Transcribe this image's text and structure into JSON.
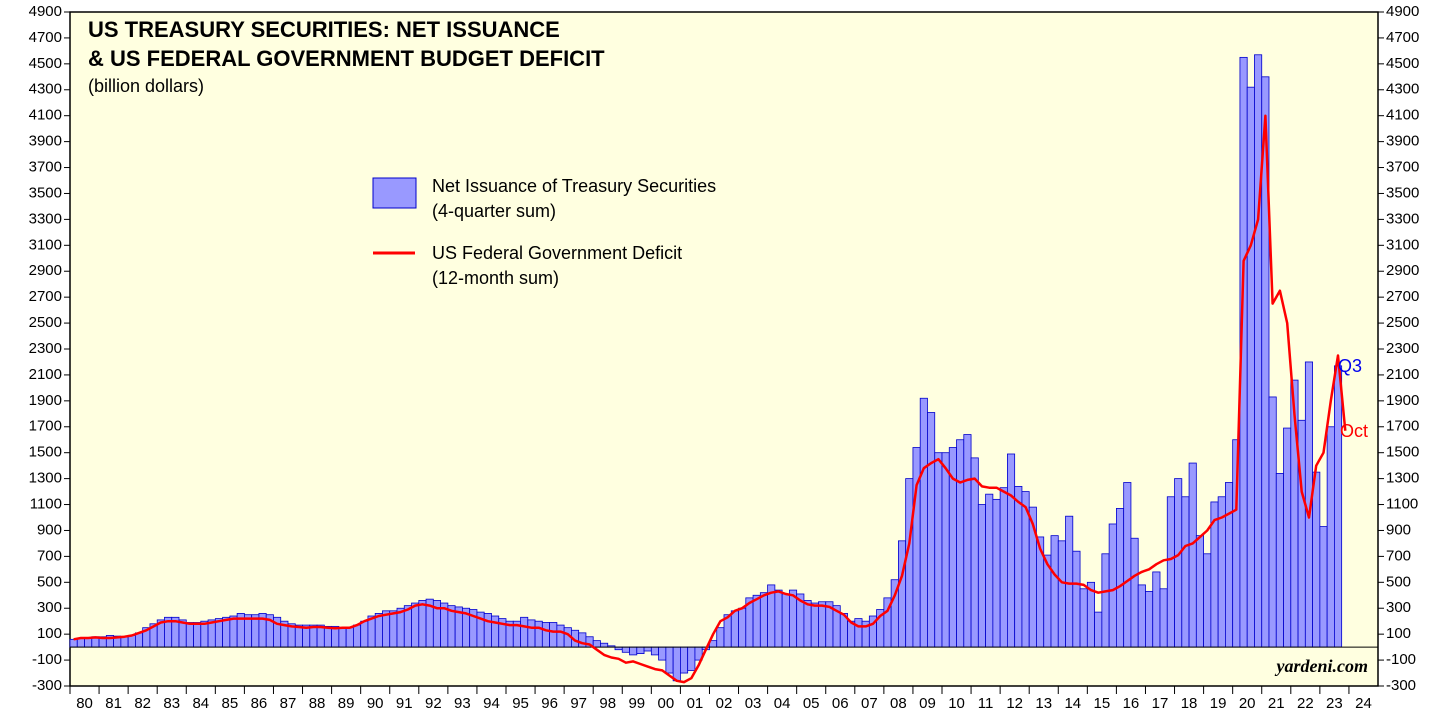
{
  "chart_data": {
    "type": "bar+line",
    "title": [
      "US TREASURY SECURITIES: NET ISSUANCE",
      "& US FEDERAL GOVERNMENT BUDGET DEFICIT"
    ],
    "subtitle": "(billion dollars)",
    "annotations": {
      "bars_end": "Q3",
      "line_end": "Oct",
      "source": "yardeni.com"
    },
    "x": [
      1980,
      1980.25,
      1980.5,
      1980.75,
      1981,
      1981.25,
      1981.5,
      1981.75,
      1982,
      1982.25,
      1982.5,
      1982.75,
      1983,
      1983.25,
      1983.5,
      1983.75,
      1984,
      1984.25,
      1984.5,
      1984.75,
      1985,
      1985.25,
      1985.5,
      1985.75,
      1986,
      1986.25,
      1986.5,
      1986.75,
      1987,
      1987.25,
      1987.5,
      1987.75,
      1988,
      1988.25,
      1988.5,
      1988.75,
      1989,
      1989.25,
      1989.5,
      1989.75,
      1990,
      1990.25,
      1990.5,
      1990.75,
      1991,
      1991.25,
      1991.5,
      1991.75,
      1992,
      1992.25,
      1992.5,
      1992.75,
      1993,
      1993.25,
      1993.5,
      1993.75,
      1994,
      1994.25,
      1994.5,
      1994.75,
      1995,
      1995.25,
      1995.5,
      1995.75,
      1996,
      1996.25,
      1996.5,
      1996.75,
      1997,
      1997.25,
      1997.5,
      1997.75,
      1998,
      1998.25,
      1998.5,
      1998.75,
      1999,
      1999.25,
      1999.5,
      1999.75,
      2000,
      2000.25,
      2000.5,
      2000.75,
      2001,
      2001.25,
      2001.5,
      2001.75,
      2002,
      2002.25,
      2002.5,
      2002.75,
      2003,
      2003.25,
      2003.5,
      2003.75,
      2004,
      2004.25,
      2004.5,
      2004.75,
      2005,
      2005.25,
      2005.5,
      2005.75,
      2006,
      2006.25,
      2006.5,
      2006.75,
      2007,
      2007.25,
      2007.5,
      2007.75,
      2008,
      2008.25,
      2008.5,
      2008.75,
      2009,
      2009.25,
      2009.5,
      2009.75,
      2010,
      2010.25,
      2010.5,
      2010.75,
      2011,
      2011.25,
      2011.5,
      2011.75,
      2012,
      2012.25,
      2012.5,
      2012.75,
      2013,
      2013.25,
      2013.5,
      2013.75,
      2014,
      2014.25,
      2014.5,
      2014.75,
      2015,
      2015.25,
      2015.5,
      2015.75,
      2016,
      2016.25,
      2016.5,
      2016.75,
      2017,
      2017.25,
      2017.5,
      2017.75,
      2018,
      2018.25,
      2018.5,
      2018.75,
      2019,
      2019.25,
      2019.5,
      2019.75,
      2020,
      2020.25,
      2020.5,
      2020.75,
      2021,
      2021.25,
      2021.5,
      2021.75,
      2022,
      2022.25,
      2022.5,
      2022.75,
      2023,
      2023.25,
      2023.5,
      2023.75
    ],
    "series": [
      {
        "name": [
          "Net Issuance of Treasury Securities",
          "(4-quarter sum)"
        ],
        "kind": "bar",
        "color": "#9999ff",
        "edge": "#0000cc",
        "values": [
          60,
          70,
          75,
          80,
          80,
          90,
          85,
          80,
          90,
          110,
          150,
          180,
          210,
          230,
          230,
          210,
          190,
          190,
          200,
          210,
          220,
          230,
          240,
          260,
          250,
          250,
          260,
          250,
          230,
          200,
          180,
          170,
          170,
          170,
          170,
          160,
          160,
          150,
          150,
          170,
          200,
          240,
          260,
          280,
          280,
          300,
          320,
          340,
          360,
          370,
          360,
          340,
          320,
          310,
          300,
          290,
          270,
          260,
          240,
          220,
          200,
          200,
          230,
          210,
          200,
          190,
          190,
          170,
          150,
          130,
          110,
          80,
          50,
          30,
          10,
          -20,
          -40,
          -60,
          -50,
          -30,
          -60,
          -100,
          -200,
          -260,
          -200,
          -180,
          -100,
          -20,
          50,
          150,
          250,
          280,
          300,
          380,
          400,
          420,
          480,
          440,
          410,
          440,
          410,
          360,
          340,
          350,
          350,
          320,
          260,
          200,
          220,
          200,
          240,
          290,
          380,
          520,
          820,
          1300,
          1540,
          1920,
          1810,
          1500,
          1500,
          1540,
          1600,
          1640,
          1460,
          1100,
          1180,
          1140,
          1230,
          1490,
          1240,
          1200,
          1080,
          850,
          710,
          860,
          820,
          1010,
          740,
          450,
          500,
          270,
          720,
          950,
          1070,
          1270,
          840,
          480,
          430,
          580,
          450,
          1160,
          1300,
          1160,
          1420,
          860,
          720,
          1120,
          1160,
          1270,
          1600,
          4550,
          4320,
          4570,
          4400,
          1930,
          1340,
          1690,
          2060,
          1750,
          2200,
          1350,
          930,
          1700,
          2170,
          null
        ]
      },
      {
        "name": [
          "US Federal Government Deficit",
          "(12-month sum)"
        ],
        "kind": "line",
        "color": "#ff0000",
        "values": [
          60,
          70,
          70,
          75,
          70,
          70,
          75,
          80,
          90,
          110,
          130,
          160,
          190,
          200,
          200,
          190,
          180,
          180,
          180,
          190,
          200,
          210,
          220,
          220,
          220,
          220,
          220,
          210,
          180,
          170,
          160,
          155,
          150,
          155,
          155,
          150,
          145,
          150,
          150,
          170,
          200,
          220,
          240,
          250,
          260,
          270,
          290,
          320,
          330,
          320,
          300,
          300,
          280,
          270,
          260,
          240,
          220,
          200,
          190,
          180,
          170,
          170,
          160,
          150,
          150,
          130,
          120,
          120,
          100,
          50,
          30,
          20,
          -20,
          -60,
          -80,
          -90,
          -120,
          -110,
          -130,
          -150,
          -170,
          -180,
          -220,
          -260,
          -270,
          -240,
          -140,
          -20,
          100,
          200,
          230,
          280,
          300,
          340,
          370,
          400,
          420,
          430,
          410,
          400,
          360,
          330,
          320,
          320,
          310,
          280,
          250,
          190,
          160,
          160,
          180,
          240,
          280,
          400,
          550,
          800,
          1250,
          1380,
          1420,
          1450,
          1380,
          1300,
          1270,
          1290,
          1300,
          1240,
          1230,
          1230,
          1200,
          1170,
          1120,
          1080,
          950,
          760,
          640,
          560,
          500,
          490,
          490,
          480,
          440,
          420,
          430,
          440,
          470,
          510,
          550,
          580,
          600,
          640,
          670,
          680,
          710,
          780,
          800,
          850,
          900,
          980,
          1000,
          1030,
          1060,
          2980,
          3100,
          3300,
          4100,
          2650,
          2750,
          2500,
          1800,
          1200,
          1000,
          1400,
          1500,
          1900,
          2250,
          1670
        ]
      }
    ],
    "xlim": [
      1980,
      2025
    ],
    "xticks": [
      {
        "value": 1980,
        "label": "80"
      },
      {
        "value": 1981,
        "label": "81"
      },
      {
        "value": 1982,
        "label": "82"
      },
      {
        "value": 1983,
        "label": "83"
      },
      {
        "value": 1984,
        "label": "84"
      },
      {
        "value": 1985,
        "label": "85"
      },
      {
        "value": 1986,
        "label": "86"
      },
      {
        "value": 1987,
        "label": "87"
      },
      {
        "value": 1988,
        "label": "88"
      },
      {
        "value": 1989,
        "label": "89"
      },
      {
        "value": 1990,
        "label": "90"
      },
      {
        "value": 1991,
        "label": "91"
      },
      {
        "value": 1992,
        "label": "92"
      },
      {
        "value": 1993,
        "label": "93"
      },
      {
        "value": 1994,
        "label": "94"
      },
      {
        "value": 1995,
        "label": "95"
      },
      {
        "value": 1996,
        "label": "96"
      },
      {
        "value": 1997,
        "label": "97"
      },
      {
        "value": 1998,
        "label": "98"
      },
      {
        "value": 1999,
        "label": "99"
      },
      {
        "value": 2000,
        "label": "00"
      },
      {
        "value": 2001,
        "label": "01"
      },
      {
        "value": 2002,
        "label": "02"
      },
      {
        "value": 2003,
        "label": "03"
      },
      {
        "value": 2004,
        "label": "04"
      },
      {
        "value": 2005,
        "label": "05"
      },
      {
        "value": 2006,
        "label": "06"
      },
      {
        "value": 2007,
        "label": "07"
      },
      {
        "value": 2008,
        "label": "08"
      },
      {
        "value": 2009,
        "label": "09"
      },
      {
        "value": 2010,
        "label": "10"
      },
      {
        "value": 2011,
        "label": "11"
      },
      {
        "value": 2012,
        "label": "12"
      },
      {
        "value": 2013,
        "label": "13"
      },
      {
        "value": 2014,
        "label": "14"
      },
      {
        "value": 2015,
        "label": "15"
      },
      {
        "value": 2016,
        "label": "16"
      },
      {
        "value": 2017,
        "label": "17"
      },
      {
        "value": 2018,
        "label": "18"
      },
      {
        "value": 2019,
        "label": "19"
      },
      {
        "value": 2020,
        "label": "20"
      },
      {
        "value": 2021,
        "label": "21"
      },
      {
        "value": 2022,
        "label": "22"
      },
      {
        "value": 2023,
        "label": "23"
      },
      {
        "value": 2024,
        "label": "24"
      }
    ],
    "ylim": [
      -300,
      4900
    ],
    "yticks": [
      -300,
      -100,
      100,
      300,
      500,
      700,
      900,
      1100,
      1300,
      1500,
      1700,
      1900,
      2100,
      2300,
      2500,
      2700,
      2900,
      3100,
      3300,
      3500,
      3700,
      3900,
      4100,
      4300,
      4500,
      4700,
      4900
    ],
    "background": "#ffffe0"
  }
}
